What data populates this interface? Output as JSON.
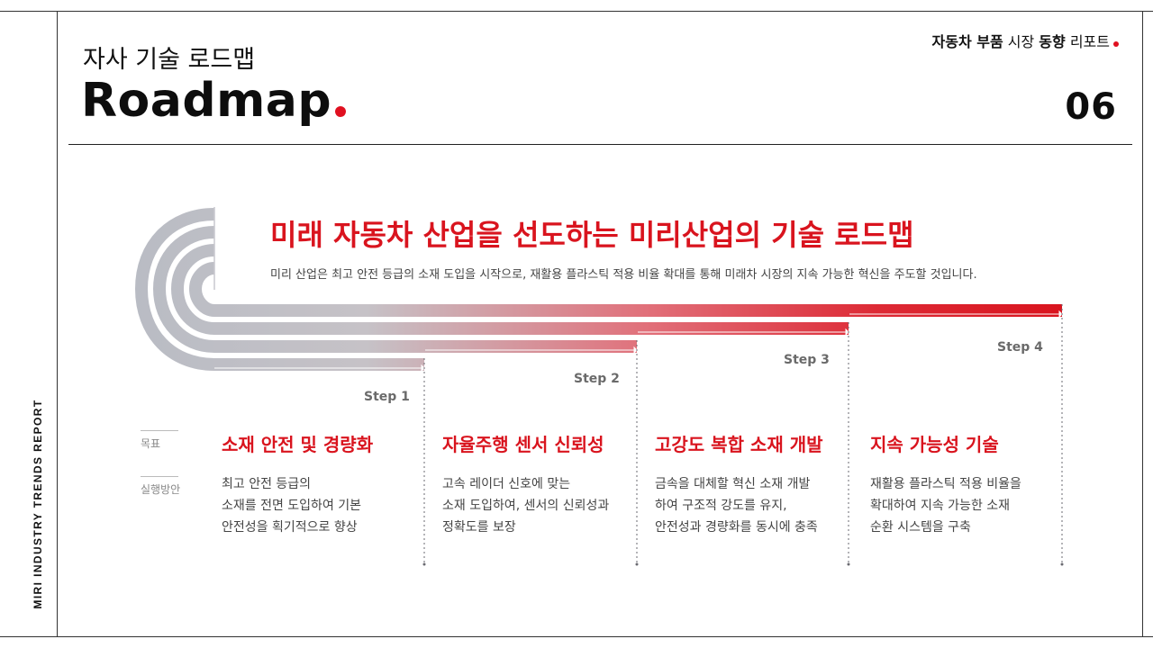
{
  "side_label": "MIRI INDUSTRY TRENDS REPORT",
  "header": {
    "heading": "자사 기술 로드맵",
    "title": "Roadmap",
    "report_name": {
      "part1": "자동차 부품",
      "part2": " 시장 ",
      "part3": "동향",
      "part4": " 리포트"
    },
    "page_number": "06"
  },
  "section": {
    "title": "미래 자동차 산업을 선도하는 미리산업의 기술 로드맵",
    "description": "미리 산업은 최고 안전 등급의 소재 도입을 시작으로, 재활용 플라스틱 적용 비율 확대를 통해 미래차 시장의 지속 가능한 혁신을 주도할 것입니다."
  },
  "row_labels": {
    "goal": "목표",
    "action": "실행방안"
  },
  "steps": [
    {
      "label": "Step 1",
      "goal": "소재 안전 및 경량화",
      "action": [
        "최고 안전 등급의",
        "소재를 전면 도입하여 기본",
        "안전성을 획기적으로 향상"
      ]
    },
    {
      "label": "Step 2",
      "goal": "자율주행 센서 신뢰성",
      "action": [
        "고속 레이더 신호에 맞는",
        "소재 도입하여, 센서의 신뢰성과",
        "정확도를 보장"
      ]
    },
    {
      "label": "Step 3",
      "goal": "고강도 복합 소재 개발",
      "action": [
        "금속을 대체할 혁신 소재 개발",
        "하여 구조적 강도를 유지,",
        "안전성과 경량화를 동시에 충족"
      ]
    },
    {
      "label": "Step 4",
      "goal": "지속 가능성 기술",
      "action": [
        "재활용 플라스틱 적용 비율을",
        "확대하여 지속 가능한 소재",
        "순환 시스템을 구축"
      ]
    }
  ],
  "colors": {
    "accent": "#d9141e",
    "track_start": "#b9bcc4"
  }
}
